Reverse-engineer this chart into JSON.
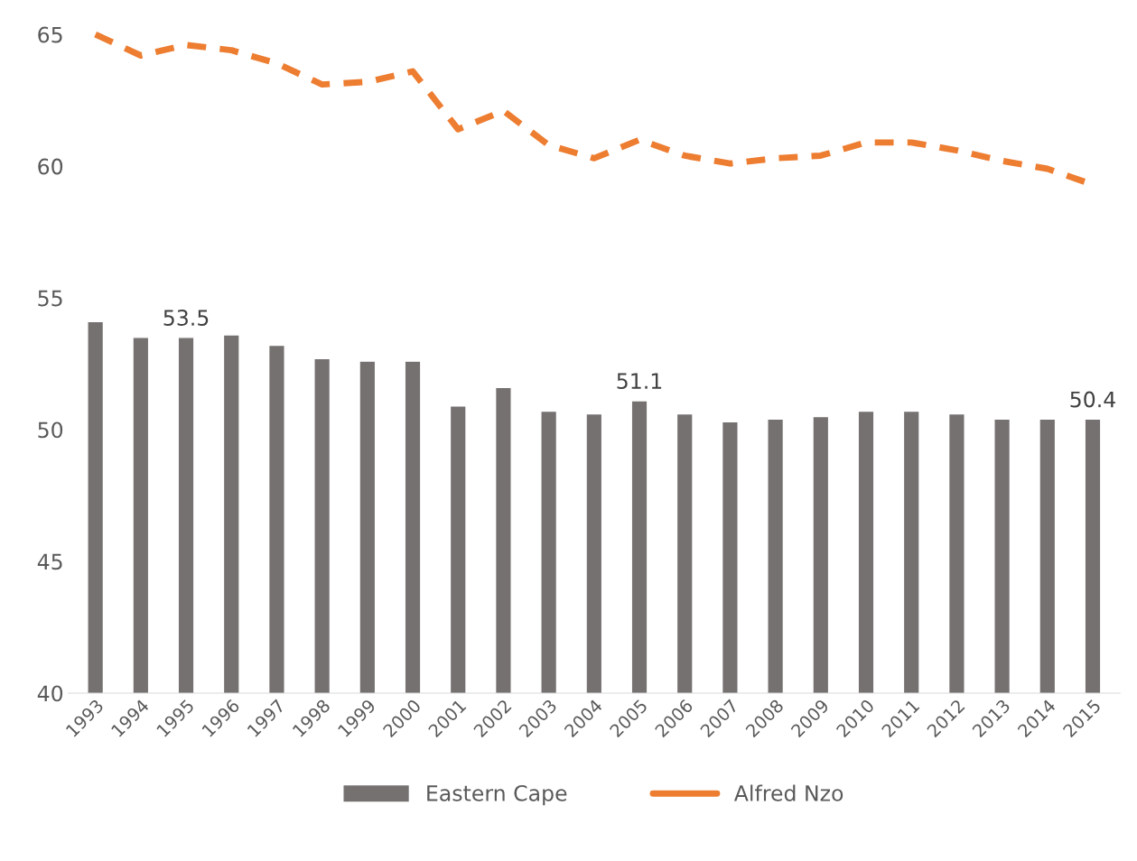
{
  "chart_data": {
    "type": "bar",
    "categories": [
      "1993",
      "1994",
      "1995",
      "1996",
      "1997",
      "1998",
      "1999",
      "2000",
      "2001",
      "2002",
      "2003",
      "2004",
      "2005",
      "2006",
      "2007",
      "2008",
      "2009",
      "2010",
      "2011",
      "2012",
      "2013",
      "2014",
      "2015"
    ],
    "series": [
      {
        "name": "Eastern Cape",
        "color": "#767171",
        "values": [
          54.1,
          53.5,
          53.5,
          53.6,
          53.2,
          52.7,
          52.6,
          52.6,
          50.9,
          51.6,
          50.7,
          50.6,
          51.1,
          50.6,
          50.3,
          50.4,
          50.5,
          50.7,
          50.7,
          50.6,
          50.4,
          50.4,
          50.4
        ],
        "value_labels": [
          null,
          null,
          "53.5",
          null,
          null,
          null,
          null,
          null,
          null,
          null,
          null,
          null,
          "51.1",
          null,
          null,
          null,
          null,
          null,
          null,
          null,
          null,
          null,
          "50.4"
        ]
      },
      {
        "name": "Alfred Nzo",
        "type": "line",
        "color": "#ed7d31",
        "line_style": "dashed",
        "values": [
          65.0,
          64.2,
          64.6,
          64.4,
          63.9,
          63.1,
          63.2,
          63.6,
          61.4,
          62.1,
          60.8,
          60.3,
          61.0,
          60.4,
          60.1,
          60.3,
          60.4,
          60.9,
          60.9,
          60.6,
          60.2,
          59.9,
          59.3
        ]
      }
    ],
    "ylim": [
      40,
      65
    ],
    "yticks": [
      40,
      45,
      50,
      55,
      60,
      65
    ],
    "grid": false,
    "legend": "bottom"
  }
}
